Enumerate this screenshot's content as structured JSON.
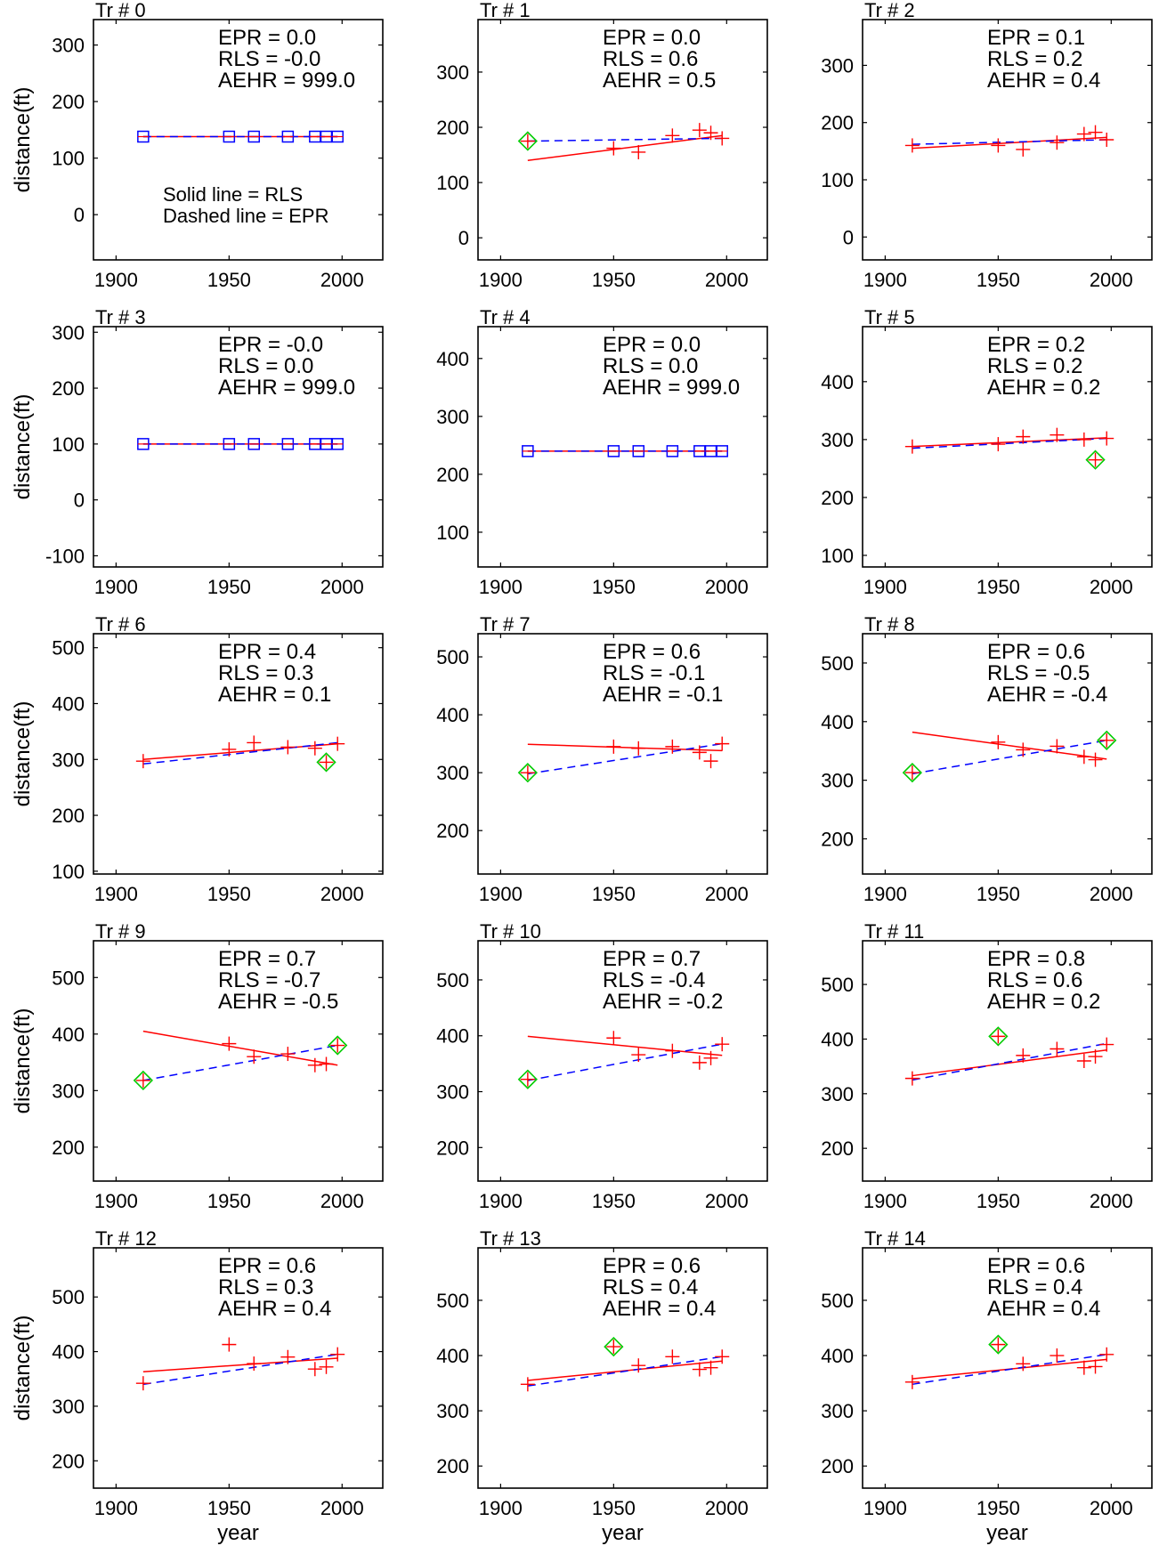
{
  "figure": {
    "xlabel": "year",
    "ylabel": "distance(ft)",
    "legend_note": [
      "Solid line = RLS",
      "Dashed line = EPR"
    ],
    "colors": {
      "rls": "#ff0000",
      "epr": "#0000ff",
      "marker_plus": "#ff0000",
      "marker_square": "#0000ff",
      "marker_diamond": "#00cc00",
      "frame": "#000000"
    },
    "xticks": [
      1900,
      1950,
      2000
    ]
  },
  "chart_data": [
    {
      "type": "scatter",
      "title": "Tr # 0",
      "stats": [
        "EPR = 0.0",
        "RLS = -0.0",
        "AEHR = 999.0"
      ],
      "xlim": [
        1890,
        2018
      ],
      "ylim": [
        -80,
        345
      ],
      "yticks": [
        0,
        100,
        200,
        300
      ],
      "years": [
        1912,
        1950,
        1961,
        1976,
        1988,
        1993,
        1998
      ],
      "values": [
        138,
        138,
        138,
        138,
        138,
        138,
        138
      ],
      "marker": "square",
      "highlight": [],
      "rls": [
        [
          1912,
          138
        ],
        [
          1998,
          138
        ]
      ],
      "epr": [
        [
          1912,
          138
        ],
        [
          1998,
          138
        ]
      ]
    },
    {
      "type": "scatter",
      "title": "Tr # 1",
      "stats": [
        "EPR = 0.0",
        "RLS = 0.6",
        "AEHR = 0.5"
      ],
      "xlim": [
        1890,
        2018
      ],
      "ylim": [
        -40,
        395
      ],
      "yticks": [
        0,
        100,
        200,
        300
      ],
      "years": [
        1912,
        1950,
        1961,
        1976,
        1988,
        1993,
        1998
      ],
      "values": [
        175,
        162,
        155,
        185,
        195,
        190,
        180
      ],
      "marker": "plus",
      "highlight": [
        0
      ],
      "rls": [
        [
          1912,
          140
        ],
        [
          1998,
          185
        ]
      ],
      "epr": [
        [
          1912,
          175
        ],
        [
          1998,
          180
        ]
      ]
    },
    {
      "type": "scatter",
      "title": "Tr # 2",
      "stats": [
        "EPR = 0.1",
        "RLS = 0.2",
        "AEHR = 0.4"
      ],
      "xlim": [
        1890,
        2018
      ],
      "ylim": [
        -40,
        380
      ],
      "yticks": [
        0,
        100,
        200,
        300
      ],
      "years": [
        1912,
        1950,
        1961,
        1976,
        1988,
        1993,
        1998
      ],
      "values": [
        160,
        160,
        153,
        165,
        180,
        183,
        170
      ],
      "marker": "plus",
      "highlight": [],
      "rls": [
        [
          1912,
          155
        ],
        [
          1998,
          174
        ]
      ],
      "epr": [
        [
          1912,
          162
        ],
        [
          1998,
          170
        ]
      ]
    },
    {
      "type": "scatter",
      "title": "Tr # 3",
      "stats": [
        "EPR = -0.0",
        "RLS = 0.0",
        "AEHR = 999.0"
      ],
      "xlim": [
        1890,
        2018
      ],
      "ylim": [
        -120,
        310
      ],
      "yticks": [
        -100,
        0,
        100,
        200,
        300
      ],
      "years": [
        1912,
        1950,
        1961,
        1976,
        1988,
        1993,
        1998
      ],
      "values": [
        100,
        100,
        100,
        100,
        100,
        100,
        100
      ],
      "marker": "square",
      "highlight": [],
      "rls": [
        [
          1912,
          100
        ],
        [
          1998,
          100
        ]
      ],
      "epr": [
        [
          1912,
          100
        ],
        [
          1998,
          100
        ]
      ]
    },
    {
      "type": "scatter",
      "title": "Tr # 4",
      "stats": [
        "EPR = 0.0",
        "RLS = 0.0",
        "AEHR = 999.0"
      ],
      "xlim": [
        1890,
        2018
      ],
      "ylim": [
        40,
        455
      ],
      "yticks": [
        100,
        200,
        300,
        400
      ],
      "years": [
        1912,
        1950,
        1961,
        1976,
        1988,
        1993,
        1998
      ],
      "values": [
        240,
        240,
        240,
        240,
        240,
        240,
        240
      ],
      "marker": "square",
      "highlight": [],
      "rls": [
        [
          1912,
          240
        ],
        [
          1998,
          240
        ]
      ],
      "epr": [
        [
          1912,
          240
        ],
        [
          1998,
          240
        ]
      ]
    },
    {
      "type": "scatter",
      "title": "Tr # 5",
      "stats": [
        "EPR = 0.2",
        "RLS = 0.2",
        "AEHR = 0.2"
      ],
      "xlim": [
        1890,
        2018
      ],
      "ylim": [
        80,
        495
      ],
      "yticks": [
        100,
        200,
        300,
        400
      ],
      "years": [
        1912,
        1950,
        1961,
        1976,
        1988,
        1993,
        1998
      ],
      "values": [
        288,
        292,
        305,
        308,
        300,
        265,
        302
      ],
      "marker": "plus",
      "highlight": [
        5
      ],
      "rls": [
        [
          1912,
          288
        ],
        [
          1998,
          303
        ]
      ],
      "epr": [
        [
          1912,
          285
        ],
        [
          1998,
          302
        ]
      ]
    },
    {
      "type": "scatter",
      "title": "Tr # 6",
      "stats": [
        "EPR = 0.4",
        "RLS = 0.3",
        "AEHR = 0.1"
      ],
      "xlim": [
        1890,
        2018
      ],
      "ylim": [
        95,
        525
      ],
      "yticks": [
        100,
        200,
        300,
        400,
        500
      ],
      "years": [
        1912,
        1950,
        1961,
        1976,
        1988,
        1993,
        1998
      ],
      "values": [
        297,
        318,
        330,
        322,
        320,
        295,
        328
      ],
      "marker": "plus",
      "highlight": [
        5
      ],
      "rls": [
        [
          1912,
          300
        ],
        [
          1998,
          328
        ]
      ],
      "epr": [
        [
          1912,
          292
        ],
        [
          1998,
          330
        ]
      ]
    },
    {
      "type": "scatter",
      "title": "Tr # 7",
      "stats": [
        "EPR = 0.6",
        "RLS = -0.1",
        "AEHR = -0.1"
      ],
      "xlim": [
        1890,
        2018
      ],
      "ylim": [
        125,
        540
      ],
      "yticks": [
        200,
        300,
        400,
        500
      ],
      "years": [
        1912,
        1950,
        1961,
        1976,
        1988,
        1993,
        1998
      ],
      "values": [
        300,
        345,
        342,
        345,
        335,
        320,
        350
      ],
      "marker": "plus",
      "highlight": [
        0
      ],
      "rls": [
        [
          1912,
          349
        ],
        [
          1998,
          338
        ]
      ],
      "epr": [
        [
          1912,
          298
        ],
        [
          1998,
          350
        ]
      ]
    },
    {
      "type": "scatter",
      "title": "Tr # 8",
      "stats": [
        "EPR = 0.6",
        "RLS = -0.5",
        "AEHR = -0.4"
      ],
      "xlim": [
        1890,
        2018
      ],
      "ylim": [
        140,
        550
      ],
      "yticks": [
        200,
        300,
        400,
        500
      ],
      "years": [
        1912,
        1950,
        1961,
        1976,
        1988,
        1993,
        1998
      ],
      "values": [
        313,
        365,
        352,
        358,
        340,
        335,
        368
      ],
      "marker": "plus",
      "highlight": [
        0,
        6
      ],
      "rls": [
        [
          1912,
          382
        ],
        [
          1998,
          336
        ]
      ],
      "epr": [
        [
          1912,
          311
        ],
        [
          1998,
          368
        ]
      ]
    },
    {
      "type": "scatter",
      "title": "Tr # 9",
      "stats": [
        "EPR = 0.7",
        "RLS = -0.7",
        "AEHR = -0.5"
      ],
      "xlim": [
        1890,
        2018
      ],
      "ylim": [
        140,
        565
      ],
      "yticks": [
        200,
        300,
        400,
        500
      ],
      "years": [
        1912,
        1950,
        1961,
        1976,
        1988,
        1993,
        1998
      ],
      "values": [
        318,
        383,
        360,
        365,
        345,
        347,
        380
      ],
      "marker": "plus",
      "highlight": [
        0,
        6
      ],
      "rls": [
        [
          1912,
          405
        ],
        [
          1998,
          345
        ]
      ],
      "epr": [
        [
          1912,
          318
        ],
        [
          1998,
          380
        ]
      ]
    },
    {
      "type": "scatter",
      "title": "Tr # 10",
      "stats": [
        "EPR = 0.7",
        "RLS = -0.4",
        "AEHR = -0.2"
      ],
      "xlim": [
        1890,
        2018
      ],
      "ylim": [
        140,
        570
      ],
      "yticks": [
        200,
        300,
        400,
        500
      ],
      "years": [
        1912,
        1950,
        1961,
        1976,
        1988,
        1993,
        1998
      ],
      "values": [
        322,
        396,
        366,
        373,
        352,
        360,
        385
      ],
      "marker": "plus",
      "highlight": [
        0
      ],
      "rls": [
        [
          1912,
          399
        ],
        [
          1998,
          365
        ]
      ],
      "epr": [
        [
          1912,
          320
        ],
        [
          1998,
          385
        ]
      ]
    },
    {
      "type": "scatter",
      "title": "Tr # 11",
      "stats": [
        "EPR = 0.8",
        "RLS = 0.6",
        "AEHR = 0.2"
      ],
      "xlim": [
        1890,
        2018
      ],
      "ylim": [
        140,
        580
      ],
      "yticks": [
        200,
        300,
        400,
        500
      ],
      "years": [
        1912,
        1950,
        1961,
        1976,
        1988,
        1993,
        1998
      ],
      "values": [
        328,
        405,
        370,
        382,
        360,
        368,
        390
      ],
      "marker": "plus",
      "highlight": [
        1
      ],
      "rls": [
        [
          1912,
          333
        ],
        [
          1998,
          380
        ]
      ],
      "epr": [
        [
          1912,
          325
        ],
        [
          1998,
          392
        ]
      ]
    },
    {
      "type": "scatter",
      "title": "Tr # 12",
      "stats": [
        "EPR = 0.6",
        "RLS = 0.3",
        "AEHR = 0.4"
      ],
      "xlim": [
        1890,
        2018
      ],
      "ylim": [
        150,
        590
      ],
      "yticks": [
        200,
        300,
        400,
        500
      ],
      "years": [
        1912,
        1950,
        1961,
        1976,
        1988,
        1993,
        1998
      ],
      "values": [
        342,
        413,
        378,
        390,
        368,
        372,
        395
      ],
      "marker": "plus",
      "highlight": [],
      "rls": [
        [
          1912,
          363
        ],
        [
          1998,
          388
        ]
      ],
      "epr": [
        [
          1912,
          340
        ],
        [
          1998,
          395
        ]
      ]
    },
    {
      "type": "scatter",
      "title": "Tr # 13",
      "stats": [
        "EPR = 0.6",
        "RLS = 0.4",
        "AEHR = 0.4"
      ],
      "xlim": [
        1890,
        2018
      ],
      "ylim": [
        160,
        595
      ],
      "yticks": [
        200,
        300,
        400,
        500
      ],
      "years": [
        1912,
        1950,
        1961,
        1976,
        1988,
        1993,
        1998
      ],
      "values": [
        348,
        416,
        382,
        398,
        375,
        378,
        398
      ],
      "marker": "plus",
      "highlight": [
        1
      ],
      "rls": [
        [
          1912,
          355
        ],
        [
          1998,
          390
        ]
      ],
      "epr": [
        [
          1912,
          345
        ],
        [
          1998,
          398
        ]
      ]
    },
    {
      "type": "scatter",
      "title": "Tr # 14",
      "stats": [
        "EPR = 0.6",
        "RLS = 0.4",
        "AEHR = 0.4"
      ],
      "xlim": [
        1890,
        2018
      ],
      "ylim": [
        160,
        595
      ],
      "yticks": [
        200,
        300,
        400,
        500
      ],
      "years": [
        1912,
        1950,
        1961,
        1976,
        1988,
        1993,
        1998
      ],
      "values": [
        352,
        420,
        385,
        400,
        378,
        380,
        402
      ],
      "marker": "plus",
      "highlight": [
        1
      ],
      "rls": [
        [
          1912,
          358
        ],
        [
          1998,
          393
        ]
      ],
      "epr": [
        [
          1912,
          348
        ],
        [
          1998,
          402
        ]
      ]
    }
  ]
}
